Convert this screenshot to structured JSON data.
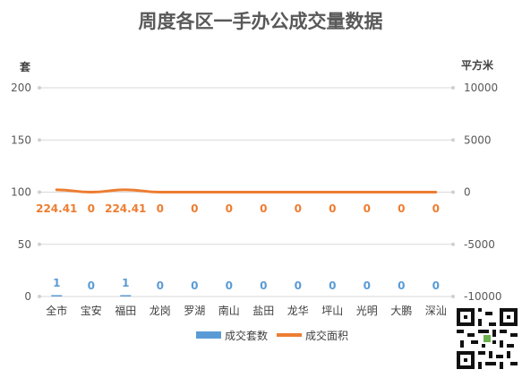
{
  "chart_data": {
    "type": "bar+line",
    "title": "周度各区一手办公成交量数据",
    "y_left_label": "套",
    "y_right_label": "平方米",
    "y_left_ticks": [
      "0",
      "50",
      "100",
      "150",
      "200"
    ],
    "y_right_ticks": [
      "-10000",
      "-5000",
      "0",
      "5000",
      "10000"
    ],
    "ylim_left": [
      0,
      200
    ],
    "ylim_right": [
      -10000,
      10000
    ],
    "categories": [
      "全市",
      "宝安",
      "福田",
      "龙岗",
      "罗湖",
      "南山",
      "盐田",
      "龙华",
      "坪山",
      "光明",
      "大鹏",
      "深汕"
    ],
    "series": [
      {
        "name": "成交套数",
        "type": "bar",
        "axis": "left",
        "color": "#5b9bd5",
        "values": [
          1,
          0,
          1,
          0,
          0,
          0,
          0,
          0,
          0,
          0,
          0,
          0
        ],
        "labels": [
          "1",
          "0",
          "1",
          "0",
          "0",
          "0",
          "0",
          "0",
          "0",
          "0",
          "0",
          "0"
        ]
      },
      {
        "name": "成交面积",
        "type": "line",
        "axis": "right",
        "color": "#ed7d31",
        "values": [
          224.41,
          0,
          224.41,
          0,
          0,
          0,
          0,
          0,
          0,
          0,
          0,
          0
        ],
        "labels": [
          "224.41",
          "0",
          "224.41",
          "0",
          "0",
          "0",
          "0",
          "0",
          "0",
          "0",
          "0",
          "0"
        ]
      }
    ],
    "grid": true,
    "legend": "bottom"
  }
}
